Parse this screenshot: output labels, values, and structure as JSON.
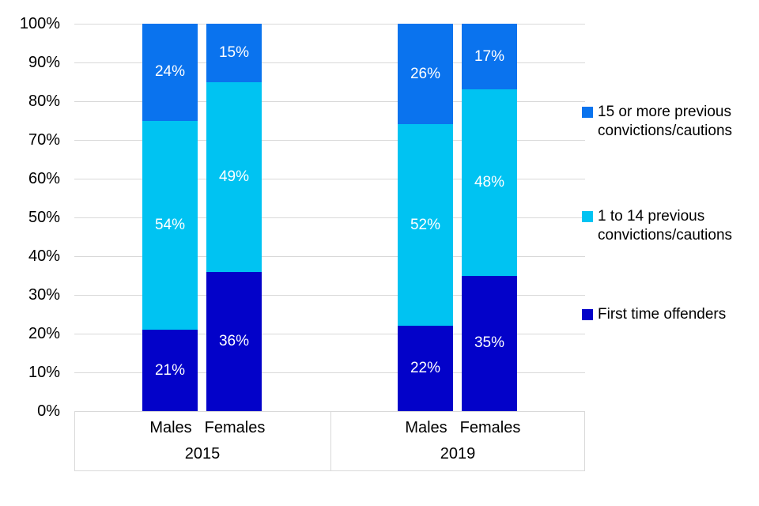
{
  "chart_data": {
    "type": "bar",
    "stacked": true,
    "title": "",
    "categories": [
      "Males",
      "Females",
      "Males",
      "Females"
    ],
    "groups": [
      {
        "label": "2015"
      },
      {
        "label": "2019"
      }
    ],
    "series": [
      {
        "name": "First time offenders",
        "color": "#0302c9",
        "values": [
          21,
          36,
          22,
          35
        ]
      },
      {
        "name": "1 to 14 previous convictions/cautions",
        "color": "#00c3f2",
        "values": [
          54,
          49,
          52,
          48
        ]
      },
      {
        "name": "15 or more previous convictions/cautions",
        "color": "#0a73ee",
        "values": [
          24,
          15,
          26,
          17
        ]
      }
    ],
    "value_suffix": "%",
    "data_label_color": "#ffffff",
    "ylim": [
      0,
      100
    ],
    "yticks": [
      0,
      10,
      20,
      30,
      40,
      50,
      60,
      70,
      80,
      90,
      100
    ],
    "ytick_suffix": "%",
    "grid": true,
    "gridline_color": "#d9d9d9",
    "axis_box_color": "#d9d9d9",
    "legend_position": "right",
    "legend": [
      {
        "label": "15 or more previous convictions/cautions",
        "color": "#0a73ee"
      },
      {
        "label": "1 to 14 previous convictions/cautions",
        "color": "#00c3f2"
      },
      {
        "label": "First time offenders",
        "color": "#0302c9"
      }
    ]
  }
}
